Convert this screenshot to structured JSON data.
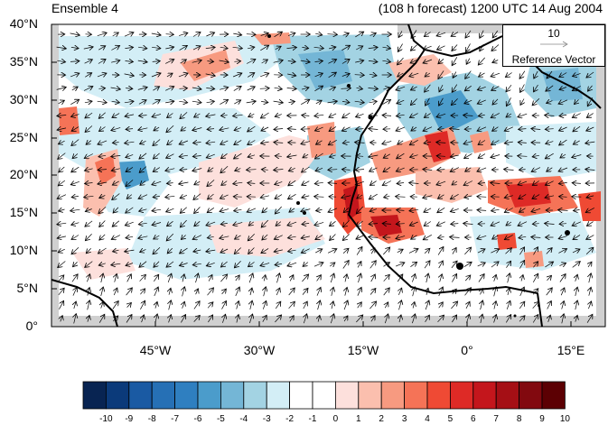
{
  "header": {
    "ensemble_label": "Ensemble 4",
    "forecast_label": "(108 h forecast) 1200 UTC 14 Aug 2004"
  },
  "axes": {
    "lat_labels": [
      "40°N",
      "35°N",
      "30°N",
      "25°N",
      "20°N",
      "15°N",
      "10°N",
      "5°N",
      "0°"
    ],
    "lon_labels": [
      "45°W",
      "30°W",
      "15°W",
      "0°",
      "15°E"
    ]
  },
  "reference_vector": {
    "value": "10",
    "label": "Reference Vector"
  },
  "colorbar": {
    "tick_labels": [
      "-10",
      "-9",
      "-8",
      "-7",
      "-6",
      "-5",
      "-4",
      "-3",
      "-2",
      "-1",
      "0",
      "1",
      "2",
      "3",
      "4",
      "5",
      "6",
      "7",
      "8",
      "9",
      "10"
    ],
    "colors": [
      "#082452",
      "#0b3a7a",
      "#1a5aa3",
      "#2670b5",
      "#2f7fc0",
      "#4b9ccb",
      "#74b6d6",
      "#a3d3e3",
      "#d3eef6",
      "#ffffff",
      "#ffffff",
      "#fde0dc",
      "#fbbfae",
      "#f79a80",
      "#f57357",
      "#ef4a34",
      "#de2a26",
      "#c4161c",
      "#a50f15",
      "#82090f",
      "#5c0003"
    ]
  },
  "map": {
    "lon_range": [
      -60,
      20
    ],
    "lat_range": [
      0,
      40
    ],
    "projection": "cylindrical equidistant",
    "field_colors": {
      "land": "#ffffff",
      "missing": "#d0d0d0"
    }
  }
}
